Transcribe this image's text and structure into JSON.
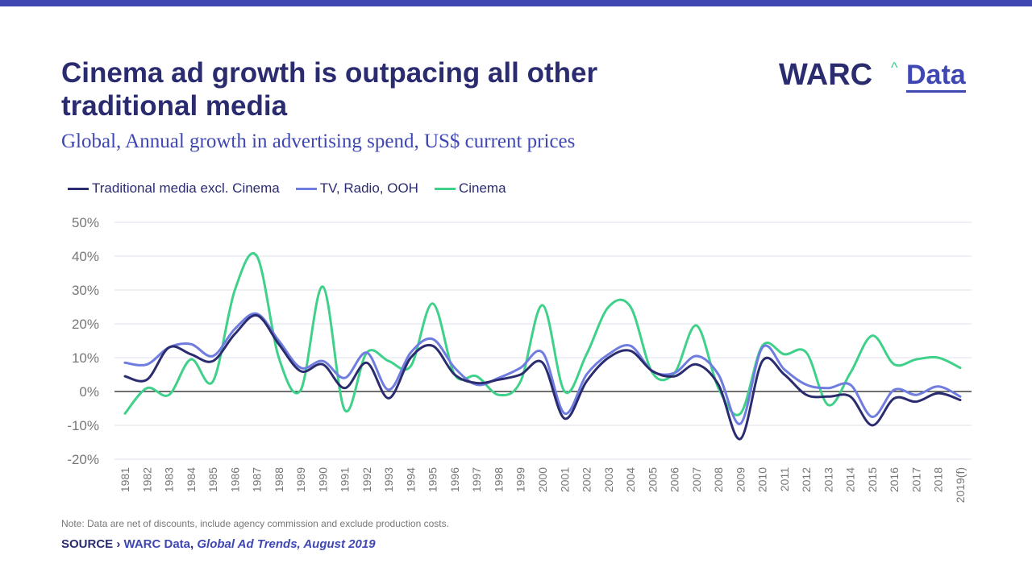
{
  "header": {
    "title": "Cinema ad growth is outpacing all other traditional media",
    "subtitle": "Global, Annual growth in advertising spend, US$ current prices"
  },
  "logo": {
    "main": "WARC",
    "caret": "^",
    "sub": "Data"
  },
  "colors": {
    "accent": "#3f47b3",
    "navy": "#2b2c6f",
    "traditional": "#2b2c6f",
    "tv": "#6f7ce0",
    "cinema": "#3fd18a"
  },
  "chart_data": {
    "type": "line",
    "title": "",
    "xlabel": "",
    "ylabel": "",
    "ylim": [
      -20,
      50
    ],
    "yticks": [
      -20,
      -10,
      0,
      10,
      20,
      30,
      40,
      50
    ],
    "ytick_labels": [
      "-20%",
      "-10%",
      "0%",
      "10%",
      "20%",
      "30%",
      "40%",
      "50%"
    ],
    "grid": true,
    "legend": "top-left",
    "x": [
      "1981",
      "1982",
      "1983",
      "1984",
      "1985",
      "1986",
      "1987",
      "1988",
      "1989",
      "1990",
      "1991",
      "1992",
      "1993",
      "1994",
      "1995",
      "1996",
      "1997",
      "1998",
      "1999",
      "2000",
      "2001",
      "2002",
      "2003",
      "2004",
      "2005",
      "2006",
      "2007",
      "2008",
      "2009",
      "2010",
      "2011",
      "2012",
      "2013",
      "2014",
      "2015",
      "2016",
      "2017",
      "2018",
      "2019(f)"
    ],
    "series": [
      {
        "name": "Traditional media excl. Cinema",
        "values": [
          4.5,
          3.5,
          13,
          11,
          9,
          17,
          22.5,
          14,
          6,
          8,
          1,
          8.5,
          -2,
          10,
          13.5,
          5,
          2.5,
          3.5,
          5,
          8.5,
          -8,
          3,
          10,
          12,
          6,
          4.5,
          8,
          2,
          -14,
          9,
          5,
          -1,
          -1.5,
          -1.5,
          -10,
          -2,
          -3,
          -0.5,
          -2.5
        ]
      },
      {
        "name": "TV, Radio, OOH",
        "values": [
          8.5,
          8,
          13,
          14,
          10.5,
          18.5,
          23,
          15,
          7,
          9,
          4,
          11.5,
          0.5,
          11.5,
          15.5,
          7,
          2,
          4,
          7,
          11.5,
          -6.5,
          5,
          11,
          13.5,
          6,
          5.5,
          10.5,
          5,
          -9.5,
          13,
          6.5,
          2,
          1,
          2,
          -7.5,
          0.5,
          -1,
          1.5,
          -1.5
        ]
      },
      {
        "name": "Cinema",
        "values": [
          -6.5,
          1,
          -1,
          9.5,
          3,
          30,
          40,
          10,
          0.5,
          31,
          -5.5,
          11.5,
          9,
          7.5,
          26,
          5,
          4.5,
          -1,
          3,
          25.5,
          0,
          11,
          25,
          25,
          5.5,
          5.5,
          19.5,
          1,
          -6.5,
          13.5,
          11,
          11.5,
          -4,
          5.5,
          16.5,
          8,
          9.5,
          10,
          7
        ]
      }
    ]
  },
  "footer": {
    "note": "Note: Data are net of discounts, include agency commission and exclude production costs.",
    "source_prefix": "SOURCE › ",
    "source_org": "WARC Data",
    "source_sep": ", ",
    "source_title": "Global Ad Trends, August 2019"
  }
}
